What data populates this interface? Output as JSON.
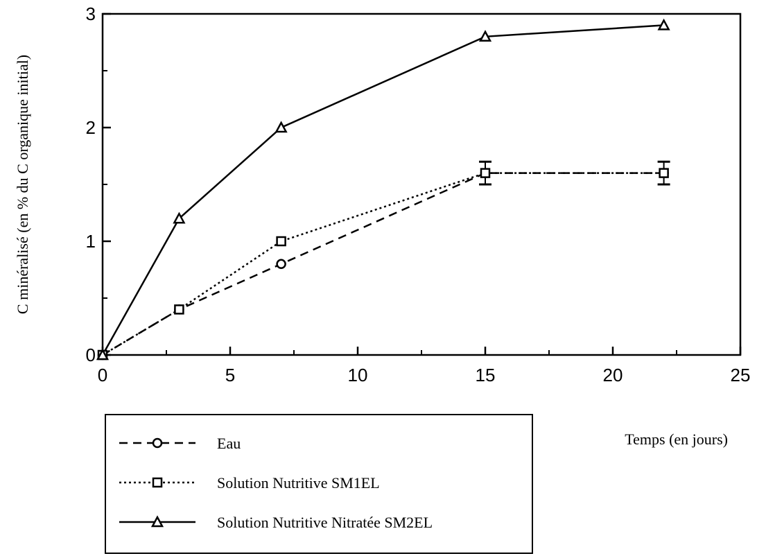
{
  "chart_data": {
    "type": "line",
    "xlabel": "Temps (en jours)",
    "ylabel": "C minéralisé (en % du C organique initial)",
    "xlim": [
      0,
      25
    ],
    "ylim": [
      0,
      3
    ],
    "xticks": [
      0,
      5,
      10,
      15,
      20,
      25
    ],
    "yticks": [
      0,
      1,
      2,
      3
    ],
    "grid": false,
    "legend_position": "bottom-left",
    "series": [
      {
        "name": "Eau",
        "line_style": "dashed",
        "marker": "circle",
        "x": [
          0,
          3,
          7,
          15,
          22
        ],
        "y": [
          0,
          0.4,
          0.8,
          1.6,
          1.6
        ],
        "error": [
          0,
          0,
          0,
          0,
          0
        ]
      },
      {
        "name": "Solution Nutritive SM1EL",
        "line_style": "dotted",
        "marker": "square",
        "x": [
          0,
          3,
          7,
          15,
          22
        ],
        "y": [
          0,
          0.4,
          1.0,
          1.6,
          1.6
        ],
        "error": [
          0,
          0,
          0,
          0.1,
          0.1
        ]
      },
      {
        "name": "Solution Nutritive Nitratée SM2EL",
        "line_style": "solid",
        "marker": "triangle",
        "x": [
          0,
          3,
          7,
          15,
          22
        ],
        "y": [
          0,
          1.2,
          2.0,
          2.8,
          2.9
        ],
        "error": [
          0,
          0,
          0,
          0,
          0
        ]
      }
    ]
  }
}
